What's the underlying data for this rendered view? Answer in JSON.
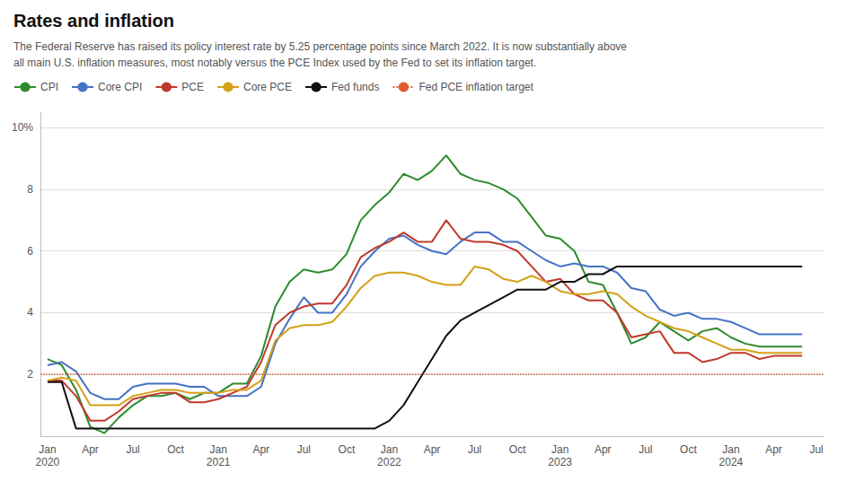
{
  "chart_data": {
    "type": "line",
    "title": "Rates and inflation",
    "subtitle": "The Federal Reserve has raised its policy interest rate by 5.25 percentage points since March 2022. It is now substantially above\nall main U.S. inflation measures, most notably versus the PCE Index used by the Fed to set its inflation target.",
    "categories": [
      "Jan\n2020",
      null,
      null,
      "Apr",
      null,
      null,
      "Jul",
      null,
      null,
      "Oct",
      null,
      null,
      "Jan\n2021",
      null,
      null,
      "Apr",
      null,
      null,
      "Jul",
      null,
      null,
      "Oct",
      null,
      null,
      "Jan\n2022",
      null,
      null,
      "Apr",
      null,
      null,
      "Jul",
      null,
      null,
      "Oct",
      null,
      null,
      "Jan\n2023",
      null,
      null,
      "Apr",
      null,
      null,
      "Jul",
      null,
      null,
      "Oct",
      null,
      null,
      "Jan\n2024",
      null,
      null,
      "Apr",
      null,
      null,
      "Jul"
    ],
    "series": [
      {
        "name": "CPI",
        "color": "#2e8b2e",
        "line_style": "solid",
        "values": [
          2.5,
          2.3,
          1.5,
          0.3,
          0.1,
          0.6,
          1.0,
          1.3,
          1.3,
          1.4,
          1.2,
          1.4,
          1.4,
          1.7,
          1.7,
          2.6,
          4.2,
          5.0,
          5.4,
          5.3,
          5.4,
          5.9,
          7.0,
          7.5,
          7.9,
          8.5,
          8.3,
          8.6,
          9.1,
          8.5,
          8.3,
          8.2,
          8.0,
          7.7,
          7.1,
          6.5,
          6.4,
          6.0,
          5.0,
          4.9,
          4.0,
          3.0,
          3.2,
          3.7,
          3.4,
          3.1,
          3.4,
          3.5,
          3.2,
          3.0,
          2.9,
          2.9,
          2.9,
          2.9,
          null
        ]
      },
      {
        "name": "Core CPI",
        "color": "#4472c4",
        "line_style": "solid",
        "values": [
          2.3,
          2.4,
          2.1,
          1.4,
          1.2,
          1.2,
          1.6,
          1.7,
          1.7,
          1.7,
          1.6,
          1.6,
          1.3,
          1.3,
          1.3,
          1.6,
          3.0,
          3.8,
          4.5,
          4.0,
          4.0,
          4.6,
          5.5,
          6.0,
          6.4,
          6.5,
          6.2,
          6.0,
          5.9,
          6.3,
          6.6,
          6.6,
          6.3,
          6.3,
          6.0,
          5.7,
          5.5,
          5.6,
          5.5,
          5.5,
          5.3,
          4.8,
          4.7,
          4.1,
          3.9,
          4.0,
          3.8,
          3.8,
          3.7,
          3.5,
          3.3,
          3.3,
          3.3,
          3.3,
          null
        ]
      },
      {
        "name": "PCE",
        "color": "#c0392b",
        "line_style": "solid",
        "values": [
          1.8,
          1.8,
          1.3,
          0.5,
          0.5,
          0.8,
          1.2,
          1.3,
          1.4,
          1.4,
          1.1,
          1.1,
          1.2,
          1.4,
          1.6,
          2.4,
          3.6,
          4.0,
          4.2,
          4.3,
          4.3,
          4.9,
          5.8,
          6.1,
          6.3,
          6.6,
          6.3,
          6.3,
          7.0,
          6.4,
          6.3,
          6.3,
          6.2,
          6.0,
          5.5,
          5.0,
          5.1,
          4.6,
          4.4,
          4.4,
          4.0,
          3.2,
          3.3,
          3.4,
          2.7,
          2.7,
          2.4,
          2.5,
          2.7,
          2.7,
          2.5,
          2.6,
          2.6,
          2.6,
          null
        ]
      },
      {
        "name": "Core PCE",
        "color": "#d4a017",
        "line_style": "solid",
        "values": [
          1.8,
          1.9,
          1.8,
          1.0,
          1.0,
          1.0,
          1.3,
          1.4,
          1.5,
          1.5,
          1.4,
          1.4,
          1.4,
          1.5,
          1.5,
          1.8,
          3.1,
          3.5,
          3.6,
          3.6,
          3.7,
          4.2,
          4.8,
          5.2,
          5.3,
          5.3,
          5.2,
          5.0,
          4.9,
          4.9,
          5.5,
          5.4,
          5.1,
          5.0,
          5.2,
          5.0,
          4.7,
          4.6,
          4.6,
          4.7,
          4.6,
          4.2,
          3.9,
          3.7,
          3.5,
          3.4,
          3.2,
          3.0,
          2.8,
          2.8,
          2.7,
          2.7,
          2.7,
          2.7,
          null
        ]
      },
      {
        "name": "Fed funds",
        "color": "#111111",
        "line_style": "solid",
        "values": [
          1.75,
          1.75,
          0.25,
          0.25,
          0.25,
          0.25,
          0.25,
          0.25,
          0.25,
          0.25,
          0.25,
          0.25,
          0.25,
          0.25,
          0.25,
          0.25,
          0.25,
          0.25,
          0.25,
          0.25,
          0.25,
          0.25,
          0.25,
          0.25,
          0.5,
          1.0,
          1.75,
          2.5,
          3.25,
          3.75,
          4.0,
          4.25,
          4.5,
          4.75,
          4.75,
          4.75,
          5.0,
          5.0,
          5.25,
          5.25,
          5.5,
          5.5,
          5.5,
          5.5,
          5.5,
          5.5,
          5.5,
          5.5,
          5.5,
          5.5,
          5.5,
          5.5,
          5.5,
          5.5,
          null
        ]
      },
      {
        "name": "Fed PCE inflation target",
        "type": "hline",
        "color": "#e05c30",
        "line_style": "dotted",
        "value": 2.0
      }
    ],
    "ylim": [
      0,
      10.5
    ],
    "yticks": [
      {
        "value": 0,
        "label": ""
      },
      2,
      4,
      6,
      8,
      {
        "value": 10,
        "label": "10%"
      }
    ],
    "grid": true,
    "legend": "upper left"
  }
}
